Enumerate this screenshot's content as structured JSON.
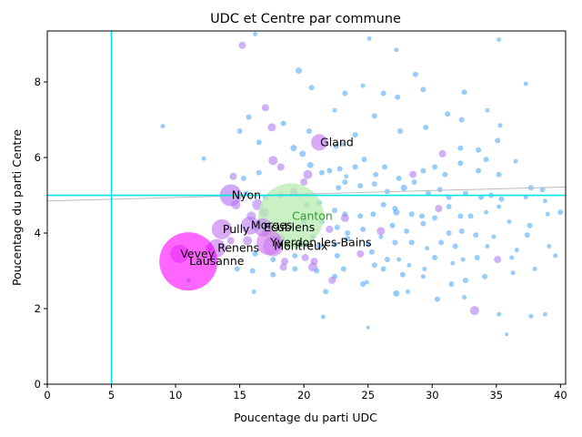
{
  "chart_data": {
    "type": "scatter",
    "title": "UDC et Centre par commune",
    "xlabel": "Poucentage du parti UDC",
    "ylabel": "Poucentage du parti Centre",
    "xlim": [
      0,
      40.4
    ],
    "ylim": [
      0,
      9.35
    ],
    "xticks": [
      0,
      5,
      10,
      15,
      20,
      25,
      30,
      35,
      40
    ],
    "yticks": [
      0,
      2,
      4,
      6,
      8
    ],
    "grid": false,
    "legend": "none",
    "reference_lines": {
      "vertical_x": 5,
      "horizontal_y": 5,
      "color": "#00e5ee"
    },
    "trend_line": {
      "from": [
        0,
        4.85
      ],
      "to": [
        40.4,
        5.22
      ],
      "color": "#bbbbbb"
    },
    "colors": {
      "big": "#ff00ff",
      "mid": "#b07cf0",
      "small": "#55aaf5",
      "canton": "#b8ecb0",
      "axis": "#000000"
    },
    "labeled_points": [
      {
        "label": "Gland",
        "x": 21.2,
        "y": 6.4,
        "size": 9,
        "color": "#c070ee"
      },
      {
        "label": "Nyon",
        "x": 14.3,
        "y": 5.0,
        "size": 12,
        "color": "#b070f0"
      },
      {
        "label": "Canton",
        "x": 19.0,
        "y": 4.45,
        "size": 36,
        "color": "#b8ecb0",
        "label_color": "#2ca02c"
      },
      {
        "label": "Ecublens",
        "x": 16.8,
        "y": 4.15,
        "size": 10,
        "color": "#b878f0"
      },
      {
        "label": "Morges",
        "x": 15.8,
        "y": 4.2,
        "size": 10,
        "color": "#b878f0"
      },
      {
        "label": "Pully",
        "x": 13.6,
        "y": 4.1,
        "size": 11,
        "color": "#c070ee"
      },
      {
        "label": "Yverdon-les-Bains",
        "x": 17.3,
        "y": 3.75,
        "size": 14,
        "color": "#d070f2"
      },
      {
        "label": "Montreux",
        "x": 17.6,
        "y": 3.65,
        "size": 11,
        "color": "#c878f0"
      },
      {
        "label": "Renens",
        "x": 13.2,
        "y": 3.6,
        "size": 10,
        "color": "#c070ee"
      },
      {
        "label": "Vevey",
        "x": 10.3,
        "y": 3.45,
        "size": 10,
        "color": "#c070ee"
      },
      {
        "label": "Lausanne",
        "x": 11.0,
        "y": 3.25,
        "size": 32,
        "color": "#ff00ff"
      }
    ],
    "points": [
      [
        15.2,
        8.97,
        4
      ],
      [
        19.6,
        8.3,
        3.5
      ],
      [
        16.2,
        9.27,
        2.5
      ],
      [
        25.1,
        9.15,
        2.5
      ],
      [
        27.2,
        8.85,
        2.5
      ],
      [
        35.2,
        9.12,
        2.5
      ],
      [
        28.7,
        8.2,
        3
      ],
      [
        24.6,
        7.9,
        2.5
      ],
      [
        20.6,
        7.85,
        3
      ],
      [
        23.2,
        7.7,
        3
      ],
      [
        26.2,
        7.7,
        3
      ],
      [
        27.3,
        7.6,
        3
      ],
      [
        29.3,
        7.8,
        3
      ],
      [
        32.5,
        7.73,
        3
      ],
      [
        37.3,
        7.95,
        2.5
      ],
      [
        9.0,
        6.83,
        2.5
      ],
      [
        12.2,
        5.97,
        2.5
      ],
      [
        15.0,
        6.7,
        3
      ],
      [
        15.7,
        7.07,
        3
      ],
      [
        17.0,
        7.32,
        4
      ],
      [
        17.5,
        6.8,
        4.5
      ],
      [
        16.5,
        6.4,
        3
      ],
      [
        18.4,
        6.9,
        3
      ],
      [
        19.2,
        6.25,
        3.5
      ],
      [
        19.9,
        6.1,
        3.5
      ],
      [
        20.4,
        6.7,
        3
      ],
      [
        22.4,
        7.25,
        2.5
      ],
      [
        22.5,
        6.3,
        3
      ],
      [
        23.0,
        6.35,
        2.5
      ],
      [
        24.0,
        6.6,
        3
      ],
      [
        25.5,
        7.1,
        3
      ],
      [
        27.5,
        6.7,
        3
      ],
      [
        29.5,
        6.8,
        3
      ],
      [
        31.2,
        7.15,
        3
      ],
      [
        32.3,
        7.0,
        3
      ],
      [
        34.3,
        7.25,
        2.5
      ],
      [
        35.3,
        6.85,
        2.5
      ],
      [
        30.8,
        6.1,
        4
      ],
      [
        32.2,
        6.25,
        3
      ],
      [
        33.6,
        6.2,
        3
      ],
      [
        35.1,
        6.45,
        3
      ],
      [
        17.6,
        5.92,
        5
      ],
      [
        18.2,
        5.75,
        4
      ],
      [
        16.5,
        5.6,
        3
      ],
      [
        15.3,
        5.45,
        3
      ],
      [
        14.5,
        5.5,
        4
      ],
      [
        20.5,
        5.8,
        3.5
      ],
      [
        21.4,
        5.6,
        3
      ],
      [
        22.0,
        5.65,
        3
      ],
      [
        22.8,
        5.7,
        3
      ],
      [
        23.3,
        5.5,
        2.5
      ],
      [
        24.0,
        5.75,
        3
      ],
      [
        24.7,
        5.95,
        3
      ],
      [
        25.6,
        5.55,
        3
      ],
      [
        26.3,
        5.75,
        3
      ],
      [
        27.4,
        5.45,
        3
      ],
      [
        28.5,
        5.55,
        4
      ],
      [
        29.3,
        5.65,
        3
      ],
      [
        30.2,
        5.75,
        3
      ],
      [
        31.0,
        5.55,
        3
      ],
      [
        32.2,
        5.85,
        3
      ],
      [
        33.6,
        5.65,
        3
      ],
      [
        34.2,
        5.95,
        3
      ],
      [
        35.2,
        5.55,
        3
      ],
      [
        36.5,
        5.9,
        2.5
      ],
      [
        37.7,
        5.2,
        3
      ],
      [
        38.6,
        5.15,
        3
      ],
      [
        40.0,
        4.55,
        3
      ],
      [
        38.8,
        4.85,
        2.5
      ],
      [
        22.7,
        5.2,
        3
      ],
      [
        23.2,
        5.35,
        3
      ],
      [
        24.4,
        5.25,
        3
      ],
      [
        25.5,
        5.3,
        3
      ],
      [
        26.5,
        5.1,
        3
      ],
      [
        27.8,
        5.2,
        3.5
      ],
      [
        28.6,
        5.35,
        3
      ],
      [
        29.7,
        5.05,
        3
      ],
      [
        30.6,
        5.15,
        3
      ],
      [
        31.3,
        4.95,
        3
      ],
      [
        32.6,
        5.05,
        3
      ],
      [
        33.8,
        4.95,
        3
      ],
      [
        34.6,
        5.0,
        3
      ],
      [
        35.4,
        4.9,
        3
      ],
      [
        37.3,
        4.95,
        2.5
      ],
      [
        20.3,
        5.55,
        5
      ],
      [
        20.0,
        5.35,
        4
      ],
      [
        19.2,
        5.1,
        4
      ],
      [
        18.2,
        5.0,
        3
      ],
      [
        17.0,
        4.95,
        3
      ],
      [
        15.5,
        5.05,
        3
      ],
      [
        14.7,
        4.75,
        5
      ],
      [
        16.4,
        4.75,
        6
      ],
      [
        16.9,
        4.55,
        5
      ],
      [
        20.2,
        4.75,
        3
      ],
      [
        21.2,
        4.8,
        3
      ],
      [
        22.4,
        4.6,
        3
      ],
      [
        23.2,
        4.5,
        3
      ],
      [
        23.2,
        4.4,
        4.5
      ],
      [
        24.4,
        4.45,
        3
      ],
      [
        25.4,
        4.5,
        3
      ],
      [
        26.2,
        4.75,
        3
      ],
      [
        27.1,
        4.65,
        3
      ],
      [
        27.2,
        4.55,
        3.5
      ],
      [
        28.4,
        4.5,
        3
      ],
      [
        29.2,
        4.45,
        3
      ],
      [
        30.5,
        4.65,
        4
      ],
      [
        30.2,
        4.4,
        3
      ],
      [
        31.3,
        4.7,
        3
      ],
      [
        32.2,
        4.45,
        3
      ],
      [
        33.0,
        4.45,
        3
      ],
      [
        34.2,
        4.55,
        2.5
      ],
      [
        35.2,
        4.7,
        2.5
      ],
      [
        36.0,
        4.3,
        2.5
      ],
      [
        37.6,
        4.2,
        3
      ],
      [
        39.0,
        4.5,
        2.5
      ],
      [
        15.9,
        4.45,
        5
      ],
      [
        20.0,
        4.3,
        3.5
      ],
      [
        21.4,
        4.3,
        3
      ],
      [
        22.0,
        4.1,
        4
      ],
      [
        22.6,
        4.15,
        3
      ],
      [
        23.4,
        4.0,
        3
      ],
      [
        24.6,
        4.1,
        3
      ],
      [
        26.0,
        4.05,
        4.5
      ],
      [
        26.9,
        4.2,
        3
      ],
      [
        28.0,
        4.05,
        3
      ],
      [
        29.3,
        4.25,
        3
      ],
      [
        31.3,
        4.0,
        3
      ],
      [
        32.3,
        4.05,
        3
      ],
      [
        33.4,
        3.95,
        3
      ],
      [
        34.8,
        3.9,
        2.5
      ],
      [
        37.4,
        3.95,
        3
      ],
      [
        15.6,
        3.8,
        5
      ],
      [
        14.3,
        3.8,
        4
      ],
      [
        18.2,
        3.85,
        5
      ],
      [
        19.8,
        3.7,
        3
      ],
      [
        20.7,
        3.9,
        3
      ],
      [
        21.2,
        3.65,
        3
      ],
      [
        22.4,
        3.7,
        3
      ],
      [
        23.4,
        3.85,
        3
      ],
      [
        25.0,
        3.7,
        3
      ],
      [
        26.0,
        3.9,
        2.5
      ],
      [
        27.1,
        3.75,
        3
      ],
      [
        28.4,
        3.75,
        3
      ],
      [
        29.6,
        3.6,
        2.5
      ],
      [
        30.7,
        3.75,
        3
      ],
      [
        31.8,
        3.65,
        3
      ],
      [
        34.3,
        3.65,
        2.5
      ],
      [
        36.6,
        3.55,
        2.5
      ],
      [
        39.1,
        3.65,
        2.5
      ],
      [
        39.6,
        3.4,
        2.5
      ],
      [
        12.6,
        3.6,
        4
      ],
      [
        13.0,
        3.35,
        3
      ],
      [
        16.2,
        3.45,
        3
      ],
      [
        17.6,
        3.3,
        3
      ],
      [
        18.5,
        3.25,
        4
      ],
      [
        19.3,
        3.4,
        3
      ],
      [
        20.1,
        3.35,
        4
      ],
      [
        20.8,
        3.25,
        4
      ],
      [
        22.6,
        3.4,
        3
      ],
      [
        24.4,
        3.45,
        4
      ],
      [
        25.3,
        3.5,
        3
      ],
      [
        25.5,
        3.15,
        3
      ],
      [
        26.5,
        3.3,
        3
      ],
      [
        27.4,
        3.3,
        2.5
      ],
      [
        28.2,
        3.15,
        2.5
      ],
      [
        29.4,
        3.05,
        2.5
      ],
      [
        30.2,
        3.35,
        3
      ],
      [
        31.6,
        3.2,
        2.5
      ],
      [
        32.4,
        3.3,
        2.5
      ],
      [
        33.5,
        3.35,
        3
      ],
      [
        35.1,
        3.3,
        4
      ],
      [
        36.2,
        3.35,
        2.5
      ],
      [
        16.0,
        3.0,
        3
      ],
      [
        14.8,
        3.05,
        3
      ],
      [
        17.6,
        2.9,
        3
      ],
      [
        18.4,
        3.1,
        4
      ],
      [
        19.3,
        3.05,
        3
      ],
      [
        20.7,
        3.1,
        5
      ],
      [
        21.0,
        3.0,
        3
      ],
      [
        22.4,
        2.85,
        3
      ],
      [
        23.1,
        3.05,
        3
      ],
      [
        24.6,
        2.65,
        3
      ],
      [
        26.2,
        3.05,
        3
      ],
      [
        27.7,
        2.9,
        3
      ],
      [
        29.3,
        2.85,
        2.5
      ],
      [
        31.5,
        2.65,
        3
      ],
      [
        32.6,
        2.75,
        3
      ],
      [
        34.1,
        2.85,
        3
      ],
      [
        36.3,
        2.95,
        2.5
      ],
      [
        38.0,
        3.05,
        2.5
      ],
      [
        11.0,
        2.75,
        2.5
      ],
      [
        16.1,
        2.45,
        2.5
      ],
      [
        21.7,
        2.45,
        3
      ],
      [
        22.2,
        2.75,
        4
      ],
      [
        24.9,
        2.7,
        2.5
      ],
      [
        27.2,
        2.4,
        3.5
      ],
      [
        28.1,
        2.45,
        2.5
      ],
      [
        30.4,
        2.25,
        3
      ],
      [
        32.5,
        2.3,
        2.5
      ],
      [
        33.3,
        1.95,
        5
      ],
      [
        35.2,
        1.85,
        2.5
      ],
      [
        37.7,
        1.8,
        2.5
      ],
      [
        38.8,
        1.85,
        2.5
      ],
      [
        21.5,
        1.78,
        2.5
      ],
      [
        25.0,
        1.5,
        2
      ],
      [
        35.8,
        1.32,
        2
      ]
    ]
  }
}
